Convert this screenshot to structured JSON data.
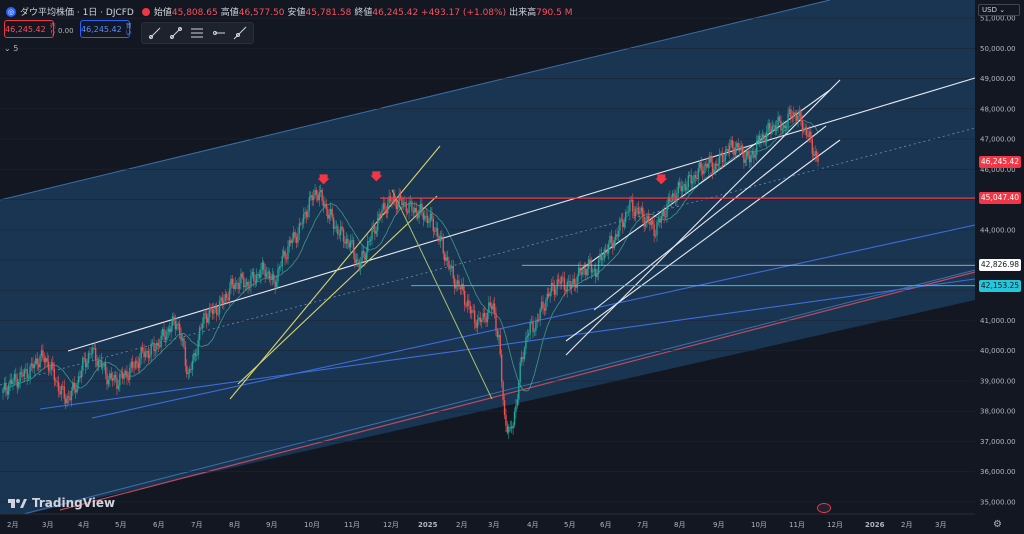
{
  "header": {
    "symbol_icon": "dow-jones-icon",
    "title": "ダウ平均株価 · 1日 · DJCFD",
    "ohlc": [
      {
        "k": "始値",
        "v": "45,808.65"
      },
      {
        "k": "高値",
        "v": "46,577.50"
      },
      {
        "k": "安値",
        "v": "45,781.58"
      },
      {
        "k": "終値",
        "v": "46,245.42 +493.17 (+1.08%)"
      },
      {
        "k": "出来高",
        "v": "790.5 M"
      }
    ]
  },
  "trade": {
    "sell_price": "46,245.42",
    "sell_label": "売り",
    "spread": "0.00",
    "buy_price": "46,245.42",
    "buy_label": "買い"
  },
  "indicators_toggle": "5",
  "toolbar": [
    "ray-tool-icon",
    "trend-line-icon",
    "multi-line-icon",
    "horizontal-ray-icon",
    "extended-line-icon"
  ],
  "price_axis": {
    "currency": "USD",
    "ticks": [
      "51,000.00",
      "50,000.00",
      "49,000.00",
      "48,000.00",
      "47,000.00",
      "46,000.00",
      "44,000.00",
      "41,000.00",
      "40,000.00",
      "39,000.00",
      "38,000.00",
      "37,000.00",
      "36,000.00",
      "35,000.00"
    ]
  },
  "price_tags": [
    {
      "label": "46,245.42",
      "value": 46245.42,
      "bg": "#f23645",
      "fg": "#ffffff"
    },
    {
      "label": "45,047.40",
      "value": 45047.4,
      "bg": "#f23645",
      "fg": "#ffffff"
    },
    {
      "label": "42,826.98",
      "value": 42826.98,
      "bg": "#ffffff",
      "fg": "#131722"
    },
    {
      "label": "42,153.25",
      "value": 42153.25,
      "bg": "#26c6da",
      "fg": "#131722"
    }
  ],
  "time_axis": [
    "2月",
    "3月",
    "4月",
    "5月",
    "6月",
    "7月",
    "8月",
    "9月",
    "10月",
    "11月",
    "12月",
    "2025",
    "2月",
    "3月",
    "4月",
    "5月",
    "6月",
    "7月",
    "8月",
    "9月",
    "10月",
    "11月",
    "12月",
    "2026",
    "2月",
    "3月"
  ],
  "branding": "TradingView",
  "chart_data": {
    "type": "candlestick",
    "x_start": "2024-02",
    "ylim": [
      34600,
      51600
    ],
    "colors": {
      "up": "#26a69a",
      "down": "#ef5350",
      "background": "#131722",
      "channel_fill": "#1f4e7a"
    },
    "price_path": [
      [
        0,
        38600
      ],
      [
        4,
        38900
      ],
      [
        8,
        39000
      ],
      [
        14,
        39200
      ],
      [
        20,
        39400
      ],
      [
        26,
        39800
      ],
      [
        32,
        39600
      ],
      [
        38,
        38900
      ],
      [
        44,
        38400
      ],
      [
        50,
        38700
      ],
      [
        56,
        39500
      ],
      [
        62,
        40000
      ],
      [
        68,
        39600
      ],
      [
        74,
        39100
      ],
      [
        80,
        39000
      ],
      [
        86,
        39200
      ],
      [
        92,
        39500
      ],
      [
        98,
        39900
      ],
      [
        104,
        40000
      ],
      [
        110,
        40300
      ],
      [
        116,
        40700
      ],
      [
        122,
        41000
      ],
      [
        126,
        40200
      ],
      [
        130,
        39200
      ],
      [
        134,
        39700
      ],
      [
        138,
        40600
      ],
      [
        142,
        41200
      ],
      [
        148,
        41300
      ],
      [
        154,
        41600
      ],
      [
        160,
        42100
      ],
      [
        166,
        42300
      ],
      [
        172,
        42200
      ],
      [
        178,
        42500
      ],
      [
        184,
        42700
      ],
      [
        190,
        42200
      ],
      [
        196,
        43000
      ],
      [
        202,
        43600
      ],
      [
        208,
        44000
      ],
      [
        214,
        44800
      ],
      [
        220,
        45300
      ],
      [
        226,
        44800
      ],
      [
        232,
        44200
      ],
      [
        238,
        43800
      ],
      [
        244,
        43500
      ],
      [
        250,
        42800
      ],
      [
        256,
        43500
      ],
      [
        262,
        44200
      ],
      [
        268,
        44800
      ],
      [
        274,
        45000
      ],
      [
        280,
        44900
      ],
      [
        286,
        44700
      ],
      [
        292,
        44600
      ],
      [
        298,
        44400
      ],
      [
        304,
        44000
      ],
      [
        310,
        43200
      ],
      [
        316,
        42400
      ],
      [
        322,
        42000
      ],
      [
        328,
        41300
      ],
      [
        334,
        40900
      ],
      [
        340,
        41300
      ],
      [
        344,
        41500
      ],
      [
        348,
        40300
      ],
      [
        352,
        37800
      ],
      [
        356,
        37200
      ],
      [
        360,
        38200
      ],
      [
        364,
        39700
      ],
      [
        368,
        40600
      ],
      [
        374,
        40900
      ],
      [
        380,
        41600
      ],
      [
        386,
        42100
      ],
      [
        392,
        42300
      ],
      [
        398,
        42100
      ],
      [
        404,
        42500
      ],
      [
        410,
        42800
      ],
      [
        416,
        42600
      ],
      [
        422,
        43300
      ],
      [
        428,
        43600
      ],
      [
        434,
        44200
      ],
      [
        440,
        44800
      ],
      [
        446,
        44600
      ],
      [
        452,
        44300
      ],
      [
        458,
        44000
      ],
      [
        464,
        44600
      ],
      [
        470,
        45100
      ],
      [
        476,
        45400
      ],
      [
        482,
        45600
      ],
      [
        488,
        45900
      ],
      [
        494,
        46200
      ],
      [
        500,
        46100
      ],
      [
        506,
        46500
      ],
      [
        512,
        46800
      ],
      [
        518,
        46600
      ],
      [
        524,
        46300
      ],
      [
        530,
        46900
      ],
      [
        536,
        47200
      ],
      [
        542,
        47500
      ],
      [
        548,
        47400
      ],
      [
        554,
        47900
      ],
      [
        560,
        47600
      ],
      [
        566,
        47000
      ],
      [
        572,
        46245
      ]
    ],
    "series": [
      {
        "name": "SMA",
        "color": "#4caf94"
      }
    ],
    "annotations": {
      "arrows": [
        {
          "x": 225,
          "y": 45500
        },
        {
          "x": 262,
          "y": 45600
        },
        {
          "x": 462,
          "y": 45500
        }
      ],
      "resistance": 45047.4,
      "support_1": 42826.98,
      "support_2": 42153.25
    }
  }
}
